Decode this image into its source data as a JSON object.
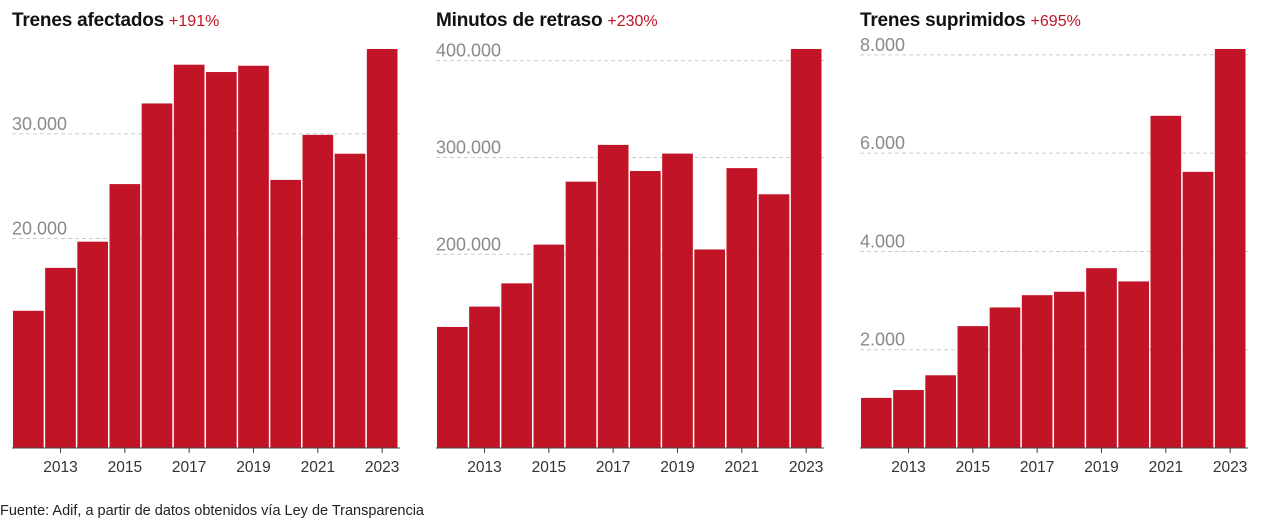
{
  "source": "Fuente: Adif, a partir de datos obtenidos vía Ley de Transparencia",
  "colors": {
    "bar": "#c11426",
    "change": "#c11426",
    "grid": "#cccccc",
    "tick_label": "#8a8a8a"
  },
  "chart_data": [
    {
      "type": "bar",
      "title": "Trenes afectados",
      "change": "+191%",
      "categories": [
        "2012",
        "2013",
        "2014",
        "2015",
        "2016",
        "2017",
        "2018",
        "2019",
        "2020",
        "2021",
        "2022",
        "2023"
      ],
      "x_tick_labels": [
        "2013",
        "2015",
        "2017",
        "2019",
        "2021",
        "2023"
      ],
      "values": [
        13100,
        17200,
        19700,
        25200,
        32900,
        36600,
        35900,
        36500,
        25600,
        29900,
        28100,
        38100
      ],
      "y_ticks": [
        20000,
        30000
      ],
      "y_tick_labels": [
        "20.000",
        "30.000"
      ],
      "ylim": [
        0,
        38100
      ],
      "grid": true
    },
    {
      "type": "bar",
      "title": "Minutos de retraso",
      "change": "+230%",
      "categories": [
        "2012",
        "2013",
        "2014",
        "2015",
        "2016",
        "2017",
        "2018",
        "2019",
        "2020",
        "2021",
        "2022",
        "2023"
      ],
      "x_tick_labels": [
        "2013",
        "2015",
        "2017",
        "2019",
        "2021",
        "2023"
      ],
      "values": [
        125000,
        146000,
        170000,
        210000,
        275000,
        313000,
        286000,
        304000,
        205000,
        289000,
        262000,
        412000
      ],
      "y_ticks": [
        200000,
        300000,
        400000
      ],
      "y_tick_labels": [
        "200.000",
        "300.000",
        "400.000"
      ],
      "ylim": [
        0,
        412000
      ],
      "grid": true
    },
    {
      "type": "bar",
      "title": "Trenes suprimidos",
      "change": "+695%",
      "categories": [
        "2012",
        "2013",
        "2014",
        "2015",
        "2016",
        "2017",
        "2018",
        "2019",
        "2020",
        "2021",
        "2022",
        "2023"
      ],
      "x_tick_labels": [
        "2013",
        "2015",
        "2017",
        "2019",
        "2021",
        "2023"
      ],
      "values": [
        1020,
        1180,
        1480,
        2480,
        2860,
        3110,
        3180,
        3660,
        3390,
        6760,
        5620,
        8120
      ],
      "y_ticks": [
        2000,
        4000,
        6000,
        8000
      ],
      "y_tick_labels": [
        "2.000",
        "4.000",
        "6.000",
        "8.000"
      ],
      "ylim": [
        0,
        8120
      ],
      "grid": true
    }
  ]
}
